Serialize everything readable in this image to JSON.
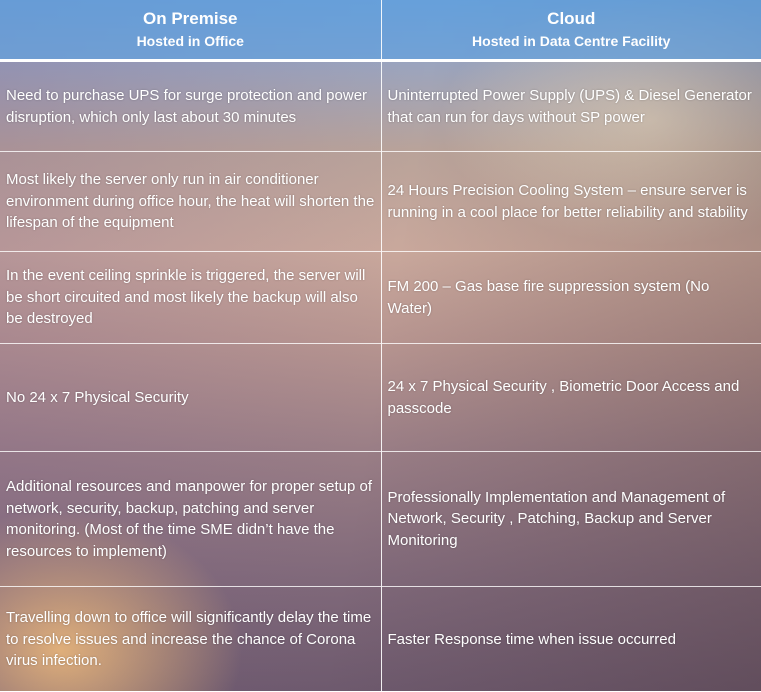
{
  "columns": [
    {
      "title": "On Premise",
      "subtitle": "Hosted in Office"
    },
    {
      "title": "Cloud",
      "subtitle": "Hosted in Data Centre Facility"
    }
  ],
  "rows": [
    {
      "on_premise": "Need to purchase UPS for surge protection and power disruption, which only last about 30 minutes",
      "cloud": "Uninterrupted Power Supply (UPS) & Diesel Generator that can run for days without SP power"
    },
    {
      "on_premise": "Most likely the server only run in air conditioner environment during office hour, the heat will shorten the lifespan of the equipment",
      "cloud": "24 Hours Precision Cooling System – ensure server is running in a cool place for better reliability and stability"
    },
    {
      "on_premise": "In the event ceiling sprinkle is triggered, the server will be short circuited and most likely the backup will also be destroyed",
      "cloud": "FM 200 – Gas base fire suppression system (No Water)"
    },
    {
      "on_premise": "No 24 x 7 Physical Security",
      "cloud": "24 x 7 Physical Security , Biometric Door Access and passcode"
    },
    {
      "on_premise": "Additional resources and manpower for proper setup of network, security, backup, patching and server monitoring. (Most of the time SME didn’t have the resources to implement)",
      "cloud": "Professionally Implementation and Management of Network, Security , Patching, Backup and Server Monitoring"
    },
    {
      "on_premise": "Travelling down to office will significantly delay the time to resolve issues and increase the chance of Corona virus infection.",
      "cloud": "Faster Response time when issue occurred"
    }
  ]
}
